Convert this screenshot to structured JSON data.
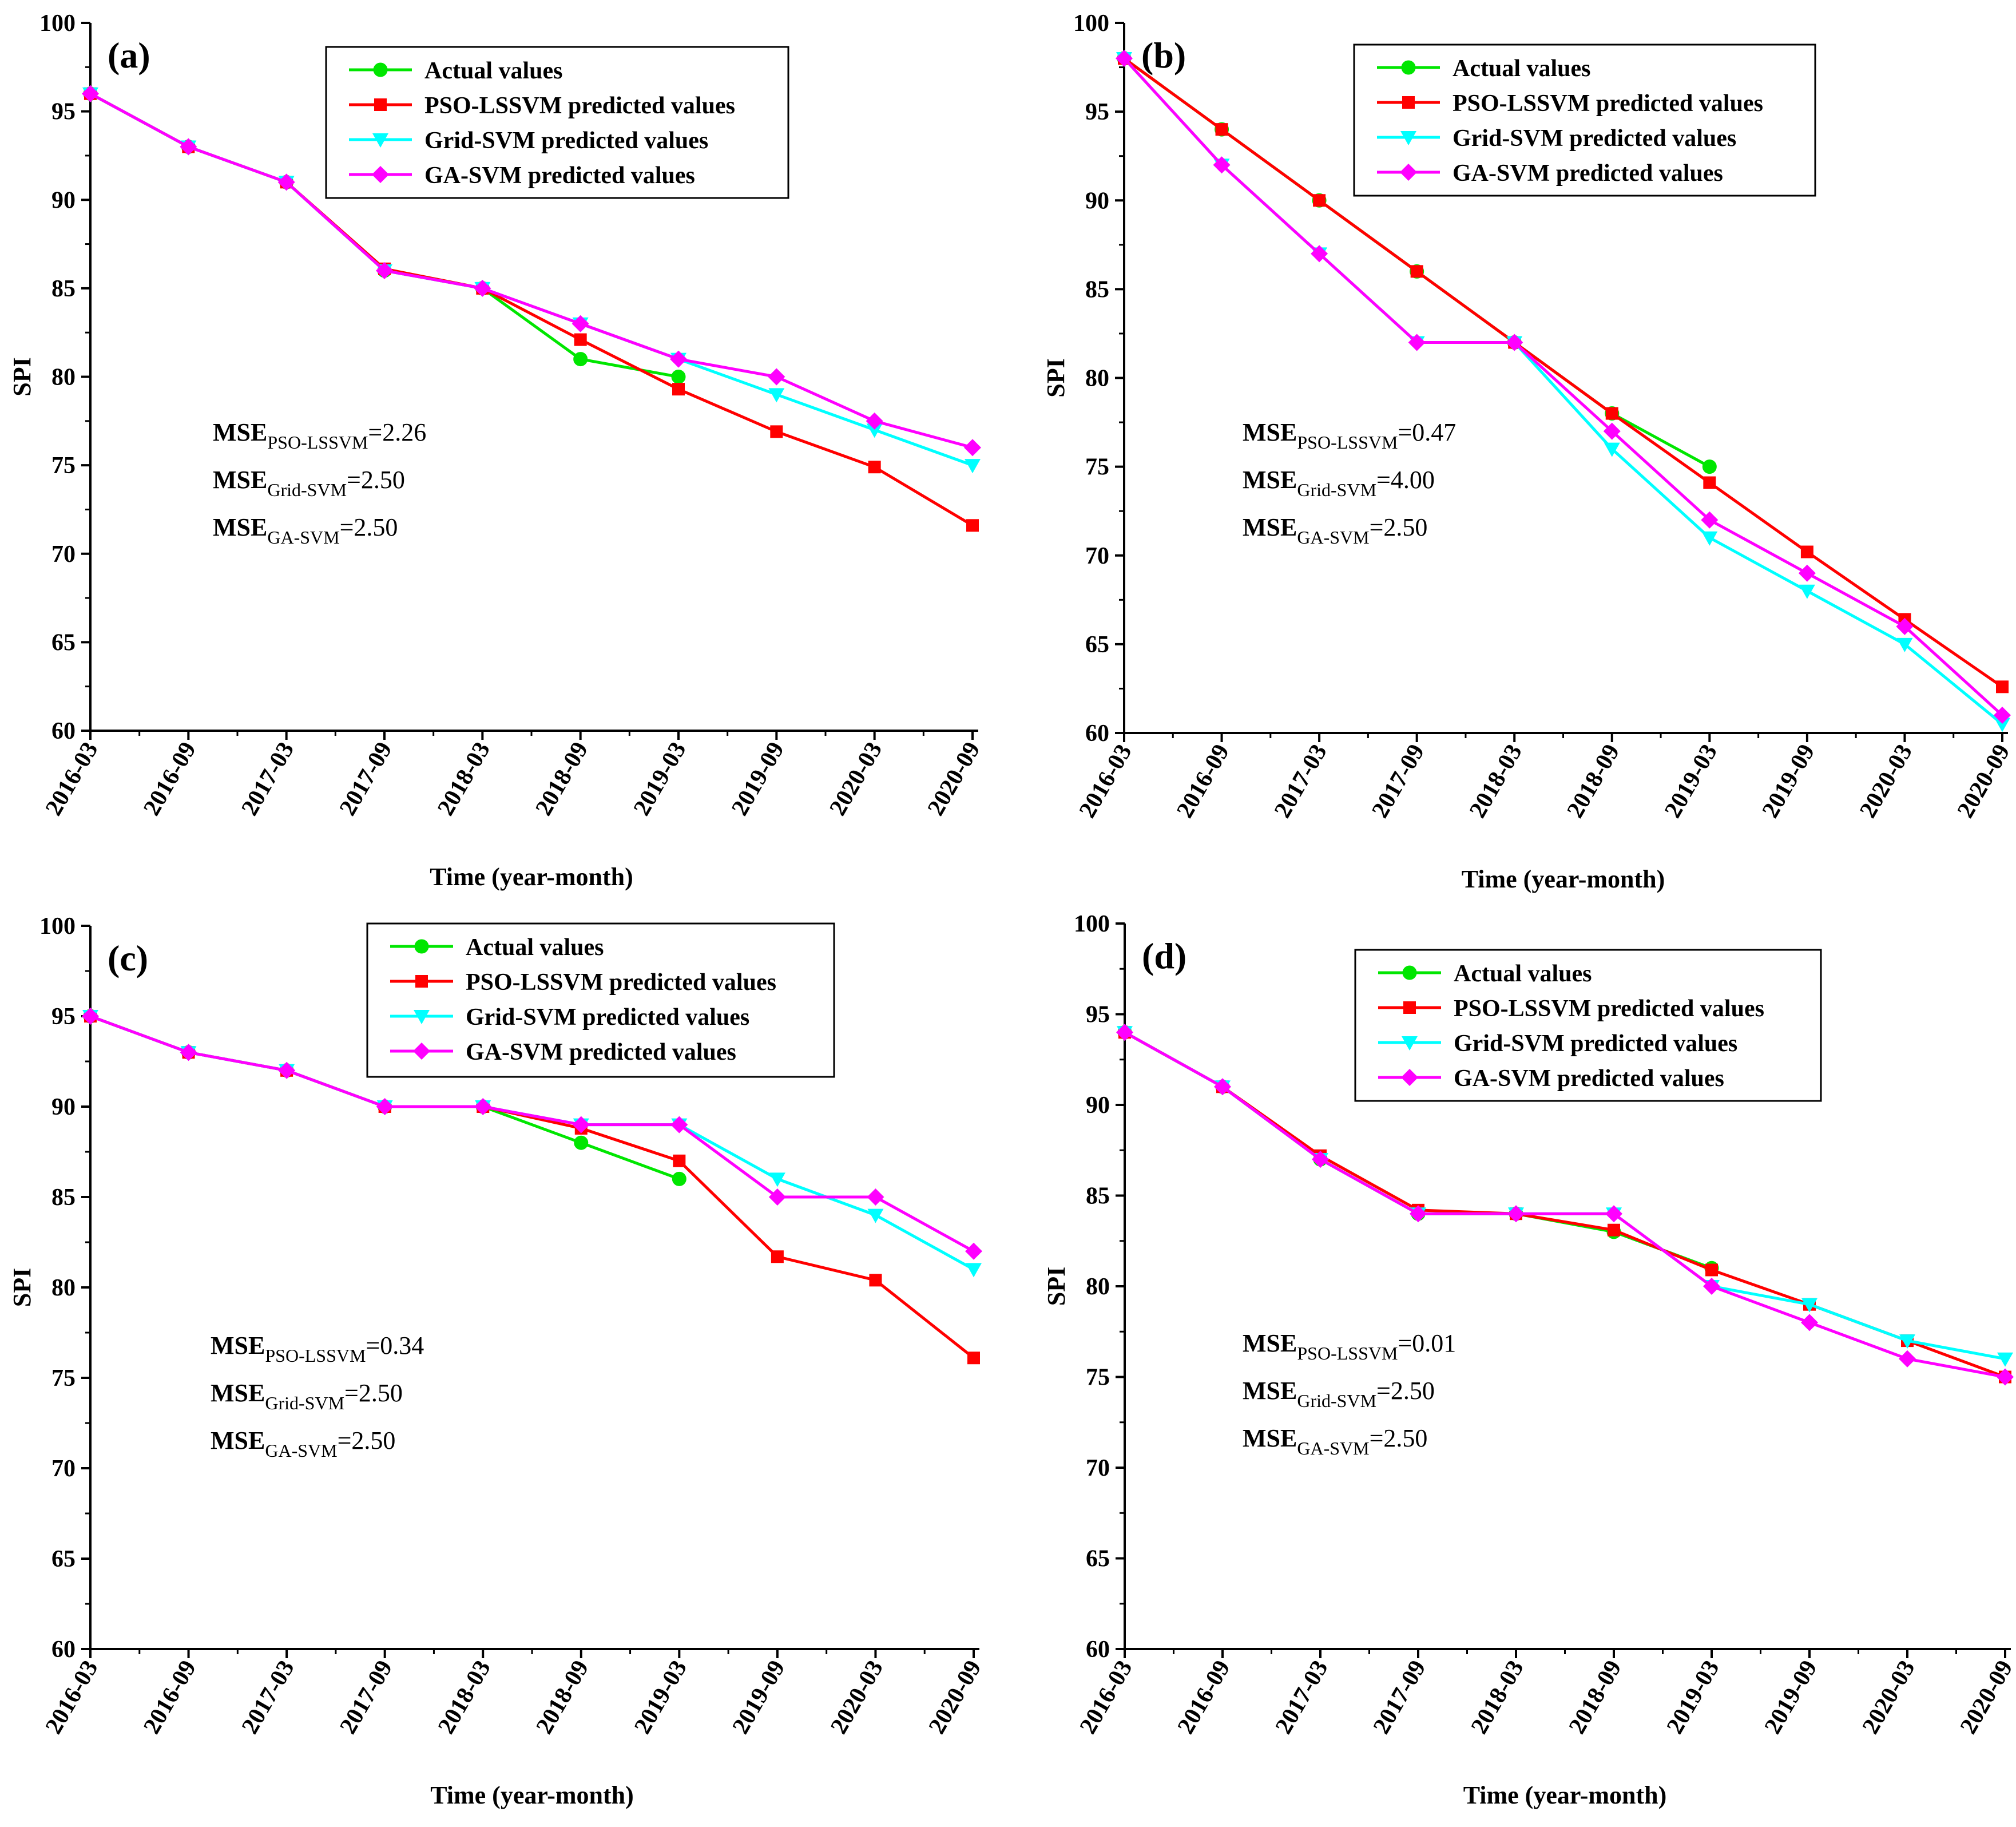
{
  "chart_data": [
    {
      "type": "line",
      "panel_label": "(a)",
      "x": [
        "2016-03",
        "2016-09",
        "2017-03",
        "2017-09",
        "2018-03",
        "2018-09",
        "2019-03",
        "2019-09",
        "2020-03",
        "2020-09"
      ],
      "xlabel": "Time (year-month)",
      "ylabel": "SPI",
      "ylim": [
        60,
        100
      ],
      "yticks": [
        "60",
        "65",
        "70",
        "75",
        "80",
        "85",
        "90",
        "95",
        "100"
      ],
      "legend_position": "top-center",
      "series": [
        {
          "name": "Actual values",
          "color": "#00e600",
          "marker": "circle",
          "values": [
            96,
            93,
            91,
            86,
            85,
            81,
            80,
            null,
            null,
            null
          ]
        },
        {
          "name": "PSO-LSSVM predicted values",
          "color": "#ff0000",
          "marker": "square",
          "values": [
            96,
            93,
            91,
            86.1,
            85,
            82.1,
            79.3,
            76.9,
            74.9,
            71.6
          ]
        },
        {
          "name": "Grid-SVM predicted values",
          "color": "#00ffff",
          "marker": "triangle-down",
          "values": [
            96,
            93,
            91,
            86,
            85,
            83,
            81,
            79,
            77,
            75
          ]
        },
        {
          "name": "GA-SVM predicted values",
          "color": "#ff00ff",
          "marker": "diamond",
          "values": [
            96,
            93,
            91,
            86,
            85,
            83,
            81,
            80,
            77.5,
            76
          ]
        }
      ],
      "mse": [
        {
          "label": "MSE",
          "sub": "PSO-LSSVM",
          "value": "=2.26"
        },
        {
          "label": "MSE",
          "sub": "Grid-SVM",
          "value": "=2.50"
        },
        {
          "label": "MSE",
          "sub": "GA-SVM",
          "value": "=2.50"
        }
      ]
    },
    {
      "type": "line",
      "panel_label": "(b)",
      "x": [
        "2016-03",
        "2016-09",
        "2017-03",
        "2017-09",
        "2018-03",
        "2018-09",
        "2019-03",
        "2019-09",
        "2020-03",
        "2020-09"
      ],
      "xlabel": "Time (year-month)",
      "ylabel": "SPI",
      "ylim": [
        60,
        100
      ],
      "yticks": [
        "60",
        "65",
        "70",
        "75",
        "80",
        "85",
        "90",
        "95",
        "100"
      ],
      "legend_position": "top-right",
      "series": [
        {
          "name": "Actual values",
          "color": "#00e600",
          "marker": "circle",
          "values": [
            98,
            94,
            90,
            86,
            82,
            78,
            75,
            null,
            null,
            null
          ]
        },
        {
          "name": "PSO-LSSVM predicted values",
          "color": "#ff0000",
          "marker": "square",
          "values": [
            98,
            94,
            90,
            86,
            82,
            78,
            74.1,
            70.2,
            66.4,
            62.6
          ]
        },
        {
          "name": "Grid-SVM predicted values",
          "color": "#00ffff",
          "marker": "triangle-down",
          "values": [
            98,
            92,
            87,
            82,
            82,
            76,
            71,
            68,
            65,
            60.5
          ]
        },
        {
          "name": "GA-SVM predicted values",
          "color": "#ff00ff",
          "marker": "diamond",
          "values": [
            98,
            92,
            87,
            82,
            82,
            77,
            72,
            69,
            66,
            61
          ]
        }
      ],
      "mse": [
        {
          "label": "MSE",
          "sub": "PSO-LSSVM",
          "value": "=0.47"
        },
        {
          "label": "MSE",
          "sub": "Grid-SVM",
          "value": "=4.00"
        },
        {
          "label": "MSE",
          "sub": "GA-SVM",
          "value": "=2.50"
        }
      ]
    },
    {
      "type": "line",
      "panel_label": "(c)",
      "x": [
        "2016-03",
        "2016-09",
        "2017-03",
        "2017-09",
        "2018-03",
        "2018-09",
        "2019-03",
        "2019-09",
        "2020-03",
        "2020-09"
      ],
      "xlabel": "Time (year-month)",
      "ylabel": "SPI",
      "ylim": [
        60,
        100
      ],
      "yticks": [
        "60",
        "65",
        "70",
        "75",
        "80",
        "85",
        "90",
        "95",
        "100"
      ],
      "legend_position": "top-right",
      "series": [
        {
          "name": "Actual values",
          "color": "#00e600",
          "marker": "circle",
          "values": [
            95,
            93,
            92,
            90,
            90,
            88,
            86,
            null,
            null,
            null
          ]
        },
        {
          "name": "PSO-LSSVM predicted values",
          "color": "#ff0000",
          "marker": "square",
          "values": [
            95,
            93,
            92,
            90,
            90,
            88.8,
            87,
            81.7,
            80.4,
            76.1
          ]
        },
        {
          "name": "Grid-SVM predicted values",
          "color": "#00ffff",
          "marker": "triangle-down",
          "values": [
            95,
            93,
            92,
            90,
            90,
            89,
            89,
            86,
            84,
            81
          ]
        },
        {
          "name": "GA-SVM predicted values",
          "color": "#ff00ff",
          "marker": "diamond",
          "values": [
            95,
            93,
            92,
            90,
            90,
            89,
            89,
            85,
            85,
            82
          ]
        }
      ],
      "mse": [
        {
          "label": "MSE",
          "sub": "PSO-LSSVM",
          "value": "=0.34"
        },
        {
          "label": "MSE",
          "sub": "Grid-SVM",
          "value": "=2.50"
        },
        {
          "label": "MSE",
          "sub": "GA-SVM",
          "value": "=2.50"
        }
      ]
    },
    {
      "type": "line",
      "panel_label": "(d)",
      "x": [
        "2016-03",
        "2016-09",
        "2017-03",
        "2017-09",
        "2018-03",
        "2018-09",
        "2019-03",
        "2019-09",
        "2020-03",
        "2020-09"
      ],
      "xlabel": "Time (year-month)",
      "ylabel": "SPI",
      "ylim": [
        60,
        100
      ],
      "yticks": [
        "60",
        "65",
        "70",
        "75",
        "80",
        "85",
        "90",
        "95",
        "100"
      ],
      "legend_position": "top-right",
      "series": [
        {
          "name": "Actual values",
          "color": "#00e600",
          "marker": "circle",
          "values": [
            94,
            91,
            87,
            84,
            84,
            83,
            81,
            null,
            null,
            null
          ]
        },
        {
          "name": "PSO-LSSVM predicted values",
          "color": "#ff0000",
          "marker": "square",
          "values": [
            94,
            91,
            87.2,
            84.2,
            84,
            83.1,
            80.9,
            79,
            77,
            75
          ]
        },
        {
          "name": "Grid-SVM predicted values",
          "color": "#00ffff",
          "marker": "triangle-down",
          "values": [
            94,
            91,
            87,
            84,
            84,
            84,
            80,
            79,
            77,
            76
          ]
        },
        {
          "name": "GA-SVM predicted values",
          "color": "#ff00ff",
          "marker": "diamond",
          "values": [
            94,
            91,
            87,
            84,
            84,
            84,
            80,
            78,
            76,
            75
          ]
        }
      ],
      "mse": [
        {
          "label": "MSE",
          "sub": "PSO-LSSVM",
          "value": "=0.01"
        },
        {
          "label": "MSE",
          "sub": "Grid-SVM",
          "value": "=2.50"
        },
        {
          "label": "MSE",
          "sub": "GA-SVM",
          "value": "=2.50"
        }
      ]
    }
  ]
}
